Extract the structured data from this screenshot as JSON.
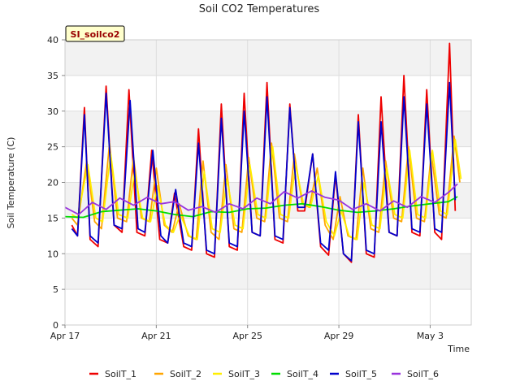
{
  "chart_data": {
    "type": "line",
    "title": "Soil CO2 Temperatures",
    "xlabel": "Time",
    "ylabel": "Soil Temperature (C)",
    "badge": "SI_soilco2",
    "xlim": [
      0,
      17.8
    ],
    "ylim": [
      0,
      40
    ],
    "yticks": [
      0,
      5,
      10,
      15,
      20,
      25,
      30,
      35,
      40
    ],
    "xticks": [
      {
        "label": "Apr 17",
        "day": 0
      },
      {
        "label": "Apr 21",
        "day": 4
      },
      {
        "label": "Apr 25",
        "day": 8
      },
      {
        "label": "Apr 29",
        "day": 12
      },
      {
        "label": "May 3",
        "day": 16
      }
    ],
    "grid": true,
    "legend_position": "bottom",
    "series": [
      {
        "name": "SoilT_1",
        "color": "#ee0000",
        "x": [
          0.3,
          0.55,
          0.85,
          1.1,
          1.45,
          1.8,
          2.15,
          2.5,
          2.8,
          3.15,
          3.5,
          3.8,
          4.15,
          4.5,
          4.8,
          5.2,
          5.55,
          5.85,
          6.2,
          6.55,
          6.85,
          7.2,
          7.55,
          7.85,
          8.2,
          8.55,
          8.85,
          9.2,
          9.55,
          9.85,
          10.2,
          10.5,
          10.85,
          11.2,
          11.55,
          11.85,
          12.2,
          12.55,
          12.85,
          13.2,
          13.55,
          13.85,
          14.2,
          14.55,
          14.85,
          15.2,
          15.55,
          15.85,
          16.2,
          16.5,
          16.85,
          17.1
        ],
        "y": [
          14,
          12.5,
          30.5,
          12,
          11,
          33.5,
          14,
          13,
          33,
          13,
          12.5,
          24.5,
          12,
          11.5,
          18.5,
          11,
          10.5,
          27.5,
          10,
          9.5,
          31,
          11,
          10.5,
          32.5,
          13,
          12.5,
          34,
          12,
          11.5,
          31,
          16,
          16,
          24,
          11,
          9.8,
          21,
          10,
          8.8,
          29.5,
          10,
          9.5,
          32,
          13,
          12.5,
          35,
          13,
          12.5,
          33,
          13,
          12,
          39.5,
          16
        ]
      },
      {
        "name": "SoilT_2",
        "color": "#ffa500",
        "x": [
          0.3,
          0.55,
          0.95,
          1.3,
          1.6,
          1.95,
          2.3,
          2.7,
          3.0,
          3.35,
          3.7,
          4.0,
          4.35,
          4.7,
          5.0,
          5.4,
          5.75,
          6.05,
          6.4,
          6.75,
          7.05,
          7.4,
          7.75,
          8.05,
          8.4,
          8.75,
          9.05,
          9.4,
          9.75,
          10.05,
          10.4,
          10.7,
          11.05,
          11.4,
          11.75,
          12.05,
          12.4,
          12.75,
          13.05,
          13.4,
          13.75,
          14.05,
          14.4,
          14.75,
          15.05,
          15.4,
          15.75,
          16.05,
          16.4,
          16.7,
          17.05,
          17.3
        ],
        "y": [
          15,
          14,
          23,
          14.5,
          13.5,
          25.5,
          15,
          14.5,
          23.5,
          15,
          14.5,
          22,
          14,
          13,
          17,
          12.5,
          12,
          23,
          13,
          12,
          22.5,
          13.5,
          13,
          23.5,
          15,
          14.5,
          25.5,
          15,
          14.5,
          24,
          17,
          16.5,
          22,
          14,
          12,
          18,
          12.5,
          12,
          22,
          13.5,
          13,
          23,
          15,
          14.5,
          25,
          15,
          14.5,
          24,
          15.5,
          15,
          26.5,
          20
        ]
      },
      {
        "name": "SoilT_3",
        "color": "#ffee00",
        "x": [
          0.3,
          0.55,
          1.0,
          1.35,
          1.65,
          2.0,
          2.35,
          2.75,
          3.05,
          3.4,
          3.75,
          4.05,
          4.4,
          4.75,
          5.05,
          5.45,
          5.8,
          6.1,
          6.45,
          6.8,
          7.1,
          7.45,
          7.8,
          8.1,
          8.45,
          8.8,
          9.1,
          9.45,
          9.8,
          10.1,
          10.45,
          10.75,
          11.1,
          11.45,
          11.8,
          12.1,
          12.45,
          12.8,
          13.1,
          13.45,
          13.8,
          14.1,
          14.45,
          14.8,
          15.1,
          15.45,
          15.8,
          16.1,
          16.45,
          16.75,
          17.1,
          17.35
        ],
        "y": [
          15.5,
          15,
          22.5,
          15,
          14.5,
          24,
          15.5,
          15,
          21.5,
          15,
          14.5,
          19.5,
          14,
          13,
          15.5,
          12.5,
          12,
          21.5,
          13.5,
          13,
          20.5,
          14,
          13.5,
          22.5,
          15.5,
          15,
          25,
          15.5,
          15,
          22.5,
          17,
          16.5,
          21,
          14.5,
          12.5,
          16,
          12.5,
          12,
          20,
          14,
          13.5,
          22,
          15.5,
          15,
          24.5,
          15.5,
          15,
          24.5,
          16,
          15.5,
          26,
          20.5
        ]
      },
      {
        "name": "SoilT_4",
        "color": "#00dd00",
        "x": [
          0,
          0.8,
          1.6,
          2.4,
          3.2,
          4.0,
          4.8,
          5.6,
          6.4,
          7.2,
          8.0,
          8.8,
          9.6,
          10.4,
          11.2,
          12.0,
          12.8,
          13.6,
          14.4,
          15.2,
          16.0,
          16.8,
          17.2
        ],
        "y": [
          15.2,
          15.1,
          15.9,
          16.1,
          16.3,
          16.0,
          15.5,
          15.2,
          15.9,
          15.8,
          16.3,
          16.4,
          16.8,
          17.0,
          16.6,
          16.1,
          15.8,
          16.0,
          16.3,
          16.7,
          17.0,
          17.3,
          18.0
        ]
      },
      {
        "name": "SoilT_5",
        "color": "#0000cc",
        "x": [
          0.3,
          0.55,
          0.85,
          1.1,
          1.45,
          1.8,
          2.15,
          2.5,
          2.85,
          3.2,
          3.5,
          3.85,
          4.2,
          4.5,
          4.85,
          5.2,
          5.55,
          5.85,
          6.2,
          6.55,
          6.85,
          7.2,
          7.55,
          7.85,
          8.2,
          8.55,
          8.85,
          9.2,
          9.55,
          9.85,
          10.2,
          10.5,
          10.85,
          11.2,
          11.55,
          11.85,
          12.2,
          12.55,
          12.85,
          13.2,
          13.55,
          13.85,
          14.2,
          14.55,
          14.85,
          15.2,
          15.55,
          15.85,
          16.2,
          16.5,
          16.85,
          17.1
        ],
        "y": [
          13.5,
          12.5,
          29.5,
          12.5,
          11.5,
          32.5,
          14,
          13.5,
          31.5,
          13.5,
          13,
          24.5,
          12.5,
          11.5,
          19,
          11.5,
          11,
          25.5,
          10.5,
          10,
          29,
          11.5,
          11,
          30,
          13,
          12.5,
          32,
          12.5,
          12,
          30.5,
          16.5,
          16.5,
          24,
          11.5,
          10.5,
          21.5,
          10,
          9,
          28.5,
          10.5,
          10,
          28.5,
          13,
          12.5,
          32,
          13.5,
          13,
          31,
          13.5,
          13,
          34,
          17.5
        ]
      },
      {
        "name": "SoilT_6",
        "color": "#9933dd",
        "x": [
          0,
          0.6,
          1.2,
          1.8,
          2.4,
          3.0,
          3.6,
          4.2,
          4.8,
          5.4,
          6.0,
          6.6,
          7.2,
          7.8,
          8.4,
          9.0,
          9.6,
          10.2,
          10.8,
          11.4,
          12.0,
          12.6,
          13.2,
          13.8,
          14.4,
          15.0,
          15.6,
          16.2,
          16.8,
          17.2
        ],
        "y": [
          16.5,
          15.5,
          17.2,
          16.2,
          17.8,
          16.8,
          17.9,
          17.0,
          17.3,
          16.1,
          16.6,
          15.8,
          17.0,
          16.3,
          17.8,
          17.0,
          18.7,
          17.8,
          18.8,
          17.9,
          17.5,
          16.2,
          17.0,
          16.0,
          17.4,
          16.5,
          18.0,
          17.2,
          18.6,
          19.8
        ]
      }
    ]
  }
}
